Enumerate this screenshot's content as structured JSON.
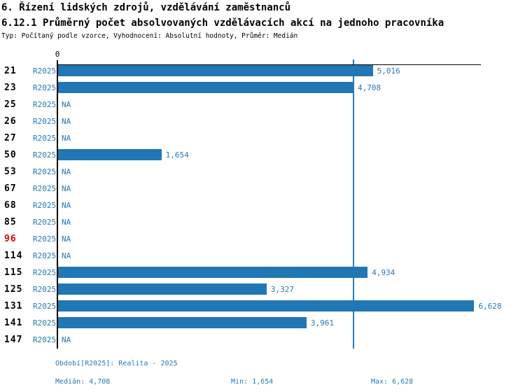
{
  "header": {
    "title_line1": "6. Řízení lidských zdrojů, vzdělávání zaměstnanců",
    "title_line2": "6.12.1 Průměrný počet absolvovaných vzdělávacích akcí na jednoho pracovníka",
    "subtitle": "Typ: Počítaný podle vzorce, Vyhodnocení: Absolutní hodnoty, Průměr: Medián"
  },
  "chart_data": {
    "type": "bar",
    "orientation": "horizontal",
    "value_axis": {
      "zero_label": "0",
      "min": 0,
      "max_estimated": 6.73
    },
    "na_label": "NA",
    "median_line_value": 4.708,
    "rows": [
      {
        "id": "21",
        "period": "R2025",
        "value": 5.016,
        "value_label": "5,016",
        "highlight": false
      },
      {
        "id": "23",
        "period": "R2025",
        "value": 4.708,
        "value_label": "4,708",
        "highlight": false
      },
      {
        "id": "25",
        "period": "R2025",
        "value": null,
        "value_label": "NA",
        "highlight": false
      },
      {
        "id": "26",
        "period": "R2025",
        "value": null,
        "value_label": "NA",
        "highlight": false
      },
      {
        "id": "27",
        "period": "R2025",
        "value": null,
        "value_label": "NA",
        "highlight": false
      },
      {
        "id": "50",
        "period": "R2025",
        "value": 1.654,
        "value_label": "1,654",
        "highlight": false
      },
      {
        "id": "53",
        "period": "R2025",
        "value": null,
        "value_label": "NA",
        "highlight": false
      },
      {
        "id": "67",
        "period": "R2025",
        "value": null,
        "value_label": "NA",
        "highlight": false
      },
      {
        "id": "68",
        "period": "R2025",
        "value": null,
        "value_label": "NA",
        "highlight": false
      },
      {
        "id": "85",
        "period": "R2025",
        "value": null,
        "value_label": "NA",
        "highlight": false
      },
      {
        "id": "96",
        "period": "R2025",
        "value": null,
        "value_label": "NA",
        "highlight": true
      },
      {
        "id": "114",
        "period": "R2025",
        "value": null,
        "value_label": "NA",
        "highlight": false
      },
      {
        "id": "115",
        "period": "R2025",
        "value": 4.934,
        "value_label": "4,934",
        "highlight": false
      },
      {
        "id": "125",
        "period": "R2025",
        "value": 3.327,
        "value_label": "3,327",
        "highlight": false
      },
      {
        "id": "131",
        "period": "R2025",
        "value": 6.628,
        "value_label": "6,628",
        "highlight": false
      },
      {
        "id": "141",
        "period": "R2025",
        "value": 3.961,
        "value_label": "3,961",
        "highlight": false
      },
      {
        "id": "147",
        "period": "R2025",
        "value": null,
        "value_label": "NA",
        "highlight": false
      }
    ],
    "summary": {
      "median": 4.708,
      "min": 1.654,
      "max": 6.628
    },
    "colors": {
      "bar": "#2176b4",
      "blue_text": "#2579b5",
      "median_line": "#2b7cb6",
      "highlight_red": "#dd0000",
      "axis": "#000000"
    }
  },
  "footer": {
    "period_line": "Období[R2025]: Realita - 2025",
    "median": "Medián: 4,708",
    "min": "Min: 1,654",
    "max": "Max: 6,628"
  }
}
